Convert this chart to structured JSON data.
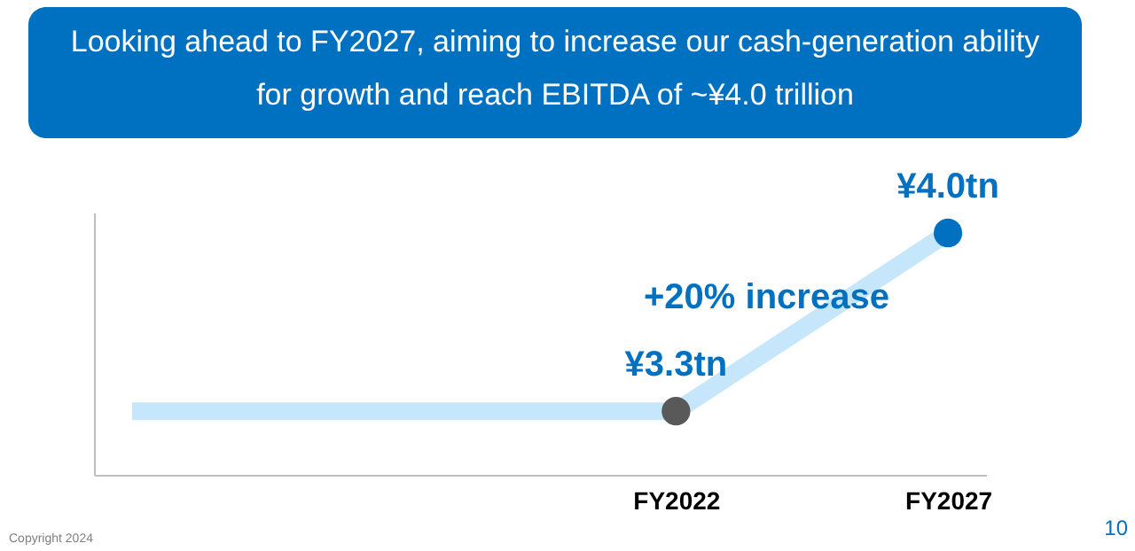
{
  "chart_data": {
    "type": "scatter",
    "title": "Looking ahead to FY2027, aiming to increase our cash-generation ability for growth and reach EBITDA of ~¥4.0 trillion",
    "categories": [
      null,
      null,
      "FY2022",
      "FY2027"
    ],
    "series": [
      {
        "type": "line",
        "color": "#c5e6fb",
        "values": [
          3.3,
          3.3,
          3.3,
          4.0
        ]
      },
      {
        "colors": [
          null,
          null,
          "#595959",
          "#0070c0"
        ],
        "values": [
          null,
          null,
          3.3,
          4.0
        ],
        "value_labels": [
          null,
          null,
          "¥3.3tn",
          "¥4.0tn"
        ]
      }
    ],
    "ylim": [
      3.05,
      4.08
    ],
    "tick_labels": "x",
    "grid": false,
    "legend": false,
    "annotations": [
      "+20% increase",
      "Copyright 2024",
      "10"
    ]
  }
}
